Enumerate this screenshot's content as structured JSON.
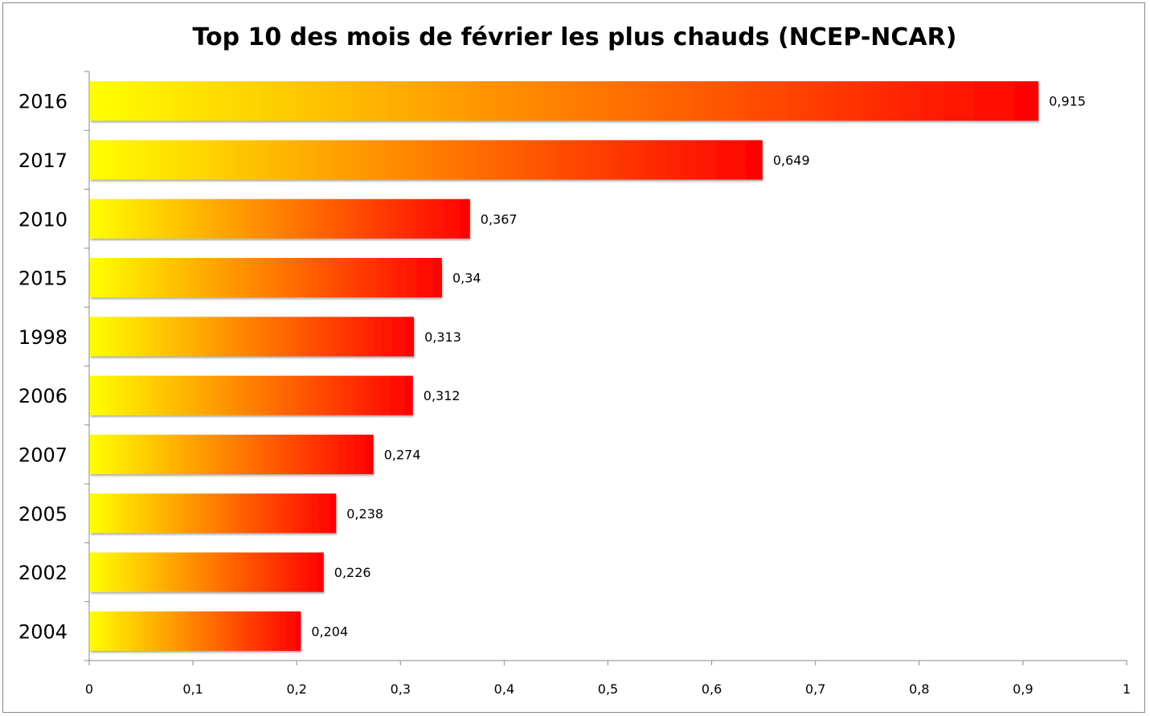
{
  "chart_data": {
    "type": "bar",
    "orientation": "horizontal",
    "title": "Top 10 des mois de février les plus chauds (NCEP-NCAR)",
    "xlabel": "",
    "ylabel": "",
    "categories": [
      "2016",
      "2017",
      "2010",
      "2015",
      "1998",
      "2006",
      "2007",
      "2005",
      "2002",
      "2004"
    ],
    "values": [
      0.915,
      0.649,
      0.367,
      0.34,
      0.313,
      0.312,
      0.274,
      0.238,
      0.226,
      0.204
    ],
    "value_labels": [
      "0,915",
      "0,649",
      "0,367",
      "0,34",
      "0,313",
      "0,312",
      "0,274",
      "0,238",
      "0,226",
      "0,204"
    ],
    "xlim": [
      0,
      1
    ],
    "x_ticks": [
      0,
      0.1,
      0.2,
      0.3,
      0.4,
      0.5,
      0.6,
      0.7,
      0.8,
      0.9,
      1
    ],
    "x_tick_labels": [
      "0",
      "0,1",
      "0,2",
      "0,3",
      "0,4",
      "0,5",
      "0,6",
      "0,7",
      "0,8",
      "0,9",
      "1"
    ],
    "grid": false,
    "legend": "none",
    "bar_gradient": {
      "start": "#ffff00",
      "end": "#ff0000"
    }
  }
}
